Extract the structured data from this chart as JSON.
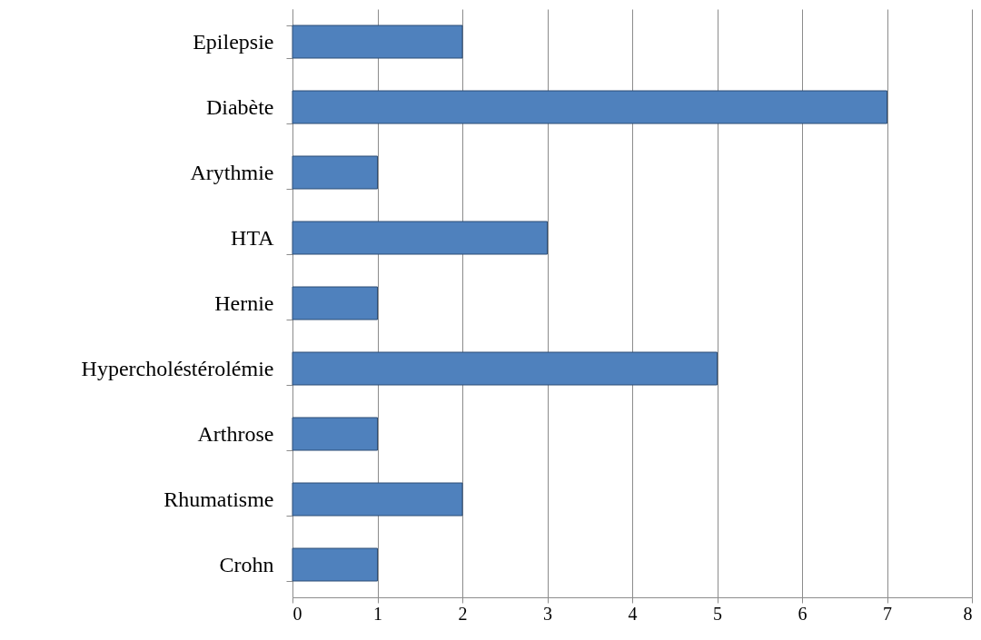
{
  "chart_data": {
    "type": "bar",
    "orientation": "horizontal",
    "categories": [
      "Epilepsie",
      "Diabète",
      "Arythmie",
      "HTA",
      "Hernie",
      "Hypercholéstérolémie",
      "Arthrose",
      "Rhumatisme",
      "Crohn"
    ],
    "values": [
      2,
      7,
      1,
      3,
      1,
      5,
      1,
      2,
      1
    ],
    "color": "#4f81bd",
    "xlim": [
      0,
      8
    ],
    "xticks": [
      0,
      1,
      2,
      3,
      4,
      5,
      6,
      7,
      8
    ],
    "grid": "x"
  }
}
